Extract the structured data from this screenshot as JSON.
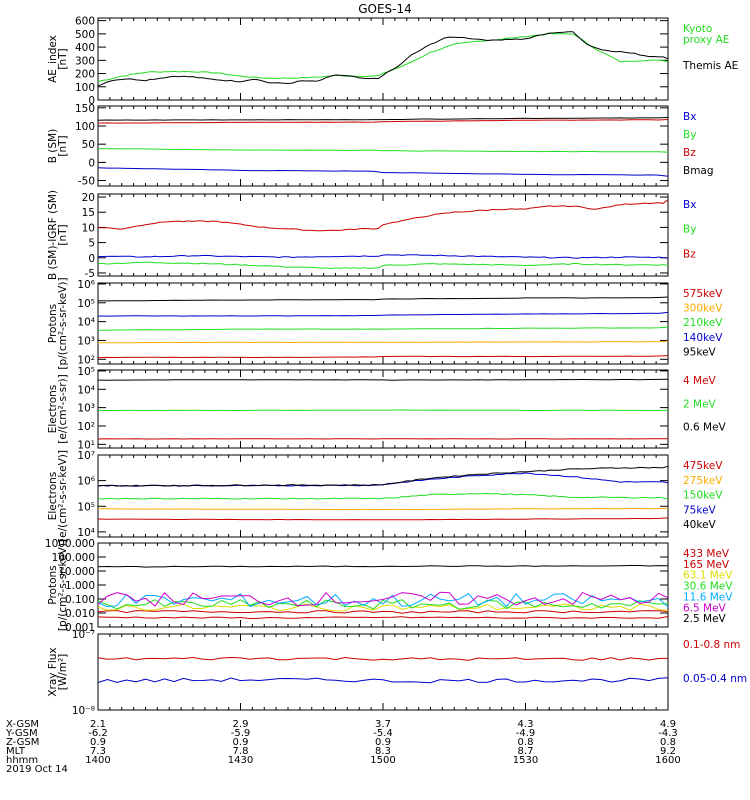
{
  "title": "GOES-14",
  "colors": {
    "black": "#000000",
    "red": "#cc0000",
    "green": "#22dd22",
    "blue": "#0000cc",
    "orange": "#ffaa00",
    "yellow": "#dddd00",
    "cyan": "#00aaff",
    "magenta": "#cc00cc",
    "kyoto": "#22dd22"
  },
  "chart_data": [
    {
      "type": "line",
      "ylabel": "AE_index\n[nT]",
      "yticks": [
        "600",
        "500",
        "400",
        "300",
        "200",
        "100",
        "0"
      ],
      "ylim": [
        0,
        620
      ],
      "scale": "linear",
      "series": [
        {
          "name": "Kyoto\nproxy AE",
          "color": "green",
          "x": [
            1400,
            1405,
            1410,
            1415,
            1420,
            1425,
            1430,
            1435,
            1440,
            1445,
            1450,
            1455,
            1500,
            1505,
            1510,
            1515,
            1520,
            1525,
            1530,
            1535,
            1540,
            1545,
            1550,
            1555,
            1600
          ],
          "y": [
            140,
            180,
            210,
            215,
            215,
            205,
            180,
            165,
            165,
            170,
            185,
            180,
            200,
            270,
            360,
            420,
            445,
            460,
            480,
            500,
            500,
            380,
            290,
            300,
            290
          ]
        },
        {
          "name": "Themis AE",
          "color": "black",
          "x": [
            1400,
            1403,
            1406,
            1410,
            1413,
            1416,
            1420,
            1423,
            1426,
            1430,
            1433,
            1436,
            1440,
            1443,
            1446,
            1450,
            1453,
            1456,
            1500,
            1503,
            1506,
            1510,
            1513,
            1516,
            1520,
            1523,
            1526,
            1530,
            1533,
            1536,
            1540,
            1543,
            1546,
            1550,
            1553,
            1556,
            1600
          ],
          "y": [
            110,
            150,
            160,
            150,
            165,
            180,
            175,
            160,
            150,
            140,
            160,
            130,
            125,
            145,
            140,
            190,
            180,
            160,
            190,
            250,
            340,
            420,
            470,
            475,
            460,
            450,
            460,
            460,
            490,
            510,
            515,
            420,
            380,
            365,
            350,
            330,
            310
          ]
        }
      ]
    },
    {
      "type": "line",
      "ylabel": "B (SM)\n[nT]",
      "yticks": [
        "150",
        "100",
        "50",
        "0",
        "-50"
      ],
      "ylim": [
        -65,
        155
      ],
      "scale": "linear",
      "series": [
        {
          "name": "Bx",
          "color": "blue",
          "x": [
            1400,
            1430,
            1500,
            1530,
            1600
          ],
          "y": [
            -15,
            -22,
            -28,
            -33,
            -38
          ]
        },
        {
          "name": "By",
          "color": "green",
          "x": [
            1400,
            1430,
            1500,
            1530,
            1600
          ],
          "y": [
            38,
            34,
            32,
            30,
            28
          ]
        },
        {
          "name": "Bz",
          "color": "red",
          "x": [
            1400,
            1430,
            1500,
            1530,
            1600
          ],
          "y": [
            108,
            110,
            112,
            116,
            118
          ]
        },
        {
          "name": "Bmag",
          "color": "black",
          "x": [
            1400,
            1430,
            1500,
            1530,
            1600
          ],
          "y": [
            116,
            117,
            118,
            121,
            124
          ]
        }
      ]
    },
    {
      "type": "line",
      "ylabel": "B (SM)-IGRF (SM)\n[nT]",
      "yticks": [
        "20",
        "15",
        "10",
        "5",
        "0",
        "-5"
      ],
      "ylim": [
        -6,
        21
      ],
      "scale": "linear",
      "series": [
        {
          "name": "Bx",
          "color": "blue",
          "x": [
            1400,
            1410,
            1420,
            1430,
            1440,
            1450,
            1500,
            1510,
            1520,
            1530,
            1540,
            1550,
            1600
          ],
          "y": [
            0.5,
            0.3,
            0.7,
            0.4,
            0.2,
            0.5,
            1.0,
            0.8,
            0.5,
            0.2,
            0.0,
            0.2,
            0.0
          ]
        },
        {
          "name": "By",
          "color": "green",
          "x": [
            1400,
            1410,
            1420,
            1430,
            1440,
            1450,
            1500,
            1510,
            1520,
            1530,
            1540,
            1550,
            1600
          ],
          "y": [
            -2.0,
            -1.5,
            -1.8,
            -2.3,
            -3.0,
            -3.5,
            -2.5,
            -2.0,
            -2.2,
            -2.5,
            -2.0,
            -2.3,
            -2.5
          ]
        },
        {
          "name": "Bz",
          "color": "red",
          "x": [
            1400,
            1405,
            1410,
            1415,
            1420,
            1425,
            1430,
            1435,
            1440,
            1445,
            1450,
            1455,
            1500,
            1505,
            1510,
            1515,
            1520,
            1525,
            1530,
            1535,
            1540,
            1545,
            1550,
            1555,
            1600
          ],
          "y": [
            10,
            9.5,
            11,
            12,
            12,
            12,
            11,
            10,
            9.5,
            9,
            9,
            9.5,
            11,
            12.5,
            14,
            15,
            15.5,
            16,
            16,
            17,
            17,
            16,
            17.5,
            18,
            19
          ]
        }
      ]
    },
    {
      "type": "line",
      "ylabel": "Protons\n[p/(cm²-s-sr-keV)]",
      "yticks": [
        "10⁶",
        "10⁵",
        "10⁴",
        "10³",
        "10²"
      ],
      "ylim": [
        1.75,
        6.05
      ],
      "scale": "log",
      "series": [
        {
          "name": "575keV",
          "color": "red",
          "x": [
            1400,
            1430,
            1500,
            1530,
            1600
          ],
          "y": [
            2.1,
            2.1,
            2.15,
            2.15,
            2.2
          ]
        },
        {
          "name": "300keV",
          "color": "orange",
          "x": [
            1400,
            1430,
            1500,
            1530,
            1600
          ],
          "y": [
            2.88,
            2.9,
            2.9,
            2.92,
            2.95
          ]
        },
        {
          "name": "210keV",
          "color": "green",
          "x": [
            1400,
            1430,
            1500,
            1530,
            1600
          ],
          "y": [
            3.55,
            3.6,
            3.6,
            3.65,
            3.7
          ]
        },
        {
          "name": "140keV",
          "color": "blue",
          "x": [
            1400,
            1430,
            1500,
            1530,
            1600
          ],
          "y": [
            4.3,
            4.3,
            4.35,
            4.4,
            4.5
          ]
        },
        {
          "name": "95keV",
          "color": "black",
          "x": [
            1400,
            1430,
            1500,
            1530,
            1600
          ],
          "y": [
            5.1,
            5.15,
            5.2,
            5.25,
            5.3
          ]
        }
      ]
    },
    {
      "type": "line",
      "ylabel": "Electrons\n[e/(cm²-s-sr)]",
      "yticks": [
        "10⁵",
        "10⁴",
        "10³",
        "10²",
        "10¹"
      ],
      "ylim": [
        0.8,
        5.05
      ],
      "scale": "log",
      "series": [
        {
          "name": "4 MeV",
          "color": "red",
          "x": [
            1400,
            1430,
            1500,
            1530,
            1600
          ],
          "y": [
            1.3,
            1.3,
            1.3,
            1.3,
            1.3
          ]
        },
        {
          "name": "2 MeV",
          "color": "green",
          "x": [
            1400,
            1430,
            1500,
            1530,
            1600
          ],
          "y": [
            2.85,
            2.85,
            2.87,
            2.85,
            2.85
          ]
        },
        {
          "name": "0.6 MeV",
          "color": "black",
          "x": [
            1400,
            1430,
            1500,
            1530,
            1600
          ],
          "y": [
            4.5,
            4.52,
            4.5,
            4.52,
            4.55
          ]
        }
      ]
    },
    {
      "type": "line",
      "ylabel": "Electrons\n[e/(cm²-s-sr-keV)]",
      "yticks": [
        "10⁷",
        "10⁶",
        "10⁵",
        "10⁴"
      ],
      "ylim": [
        3.8,
        7.0
      ],
      "scale": "log",
      "series": [
        {
          "name": "475keV",
          "color": "red",
          "x": [
            1400,
            1430,
            1500,
            1530,
            1600
          ],
          "y": [
            4.5,
            4.48,
            4.47,
            4.5,
            4.55
          ]
        },
        {
          "name": "275keV",
          "color": "orange",
          "x": [
            1400,
            1430,
            1500,
            1530,
            1600
          ],
          "y": [
            4.9,
            4.88,
            4.87,
            4.9,
            4.92
          ]
        },
        {
          "name": "150keV",
          "color": "green",
          "x": [
            1400,
            1430,
            1500,
            1510,
            1520,
            1530,
            1540,
            1600
          ],
          "y": [
            5.3,
            5.3,
            5.3,
            5.45,
            5.5,
            5.45,
            5.35,
            5.3
          ]
        },
        {
          "name": "75keV",
          "color": "blue",
          "x": [
            1400,
            1430,
            1500,
            1510,
            1520,
            1530,
            1540,
            1550,
            1600
          ],
          "y": [
            5.8,
            5.8,
            5.85,
            6.05,
            6.2,
            6.3,
            6.15,
            5.95,
            5.9
          ]
        },
        {
          "name": "40keV",
          "color": "black",
          "x": [
            1400,
            1430,
            1500,
            1510,
            1520,
            1530,
            1540,
            1550,
            1600
          ],
          "y": [
            5.8,
            5.82,
            5.85,
            6.1,
            6.25,
            6.35,
            6.45,
            6.5,
            6.55
          ]
        }
      ]
    },
    {
      "type": "line",
      "ylabel": "Protons\n[p/(cm²-s-sr-keV)]",
      "yticks": [
        "1000.000",
        "100.000",
        "10.000",
        "1.000",
        "0.100",
        "0.010",
        "0.001"
      ],
      "ylim": [
        -3.0,
        3.0
      ],
      "scale": "log",
      "series": [
        {
          "name": "433 MeV",
          "color": "red",
          "x": [
            1400,
            1430,
            1500,
            1530,
            1600
          ],
          "y": [
            -2.3,
            -2.35,
            -2.3,
            -2.35,
            -2.3
          ],
          "jitter": 0.05
        },
        {
          "name": "165 MeV",
          "color": "red",
          "x": [
            1400,
            1430,
            1500,
            1530,
            1600
          ],
          "y": [
            -1.9,
            -1.9,
            -1.95,
            -1.9,
            -1.9
          ],
          "jitter": 0.08
        },
        {
          "name": "63.1 MeV",
          "color": "yellow",
          "x": [
            1400,
            1430,
            1500,
            1530,
            1600
          ],
          "y": [
            -1.6,
            -1.6,
            -1.6,
            -1.6,
            -1.6
          ],
          "jitter": 0.25
        },
        {
          "name": "30.6 MeV",
          "color": "green",
          "x": [
            1400,
            1430,
            1500,
            1530,
            1600
          ],
          "y": [
            -1.4,
            -1.4,
            -1.4,
            -1.4,
            -1.4
          ],
          "jitter": 0.35
        },
        {
          "name": "11.6 MeV",
          "color": "cyan",
          "x": [
            1400,
            1430,
            1500,
            1530,
            1600
          ],
          "y": [
            -1.1,
            -1.1,
            -1.1,
            -1.1,
            -1.1
          ],
          "jitter": 0.5
        },
        {
          "name": "6.5 MeV",
          "color": "magenta",
          "x": [
            1400,
            1430,
            1500,
            1530,
            1600
          ],
          "y": [
            -1.0,
            -1.0,
            -1.0,
            -1.0,
            -1.0
          ],
          "jitter": 0.5
        },
        {
          "name": "2.5 MeV",
          "color": "black",
          "x": [
            1400,
            1430,
            1500,
            1530,
            1600
          ],
          "y": [
            1.3,
            1.32,
            1.35,
            1.35,
            1.4
          ],
          "jitter": 0.03
        }
      ]
    },
    {
      "type": "line",
      "ylabel": "Xray Flux\n[W/m²]",
      "yticks": [
        "10⁻⁷",
        "10⁻⁸"
      ],
      "ylim": [
        -8.0,
        -7.0
      ],
      "scale": "log",
      "series": [
        {
          "name": "0.1-0.8 nm",
          "color": "red",
          "x": [
            1400,
            1430,
            1500,
            1530,
            1600
          ],
          "y": [
            -7.33,
            -7.32,
            -7.33,
            -7.33,
            -7.32
          ],
          "jitter": 0.02
        },
        {
          "name": "0.05-0.4 nm",
          "color": "blue",
          "x": [
            1400,
            1430,
            1500,
            1530,
            1600
          ],
          "y": [
            -7.62,
            -7.6,
            -7.62,
            -7.61,
            -7.6
          ],
          "jitter": 0.025
        }
      ]
    }
  ],
  "x_axis": {
    "xlim": [
      1400,
      1600
    ],
    "row_labels": [
      "X-GSM",
      "Y-GSM",
      "Z-GSM",
      "MLT",
      "hhmm",
      "2019 Oct 14"
    ],
    "columns": [
      {
        "x": 1400,
        "values": [
          "2.1",
          "-6.2",
          "0.9",
          "7.3",
          "1400"
        ]
      },
      {
        "x": 1430,
        "values": [
          "2.9",
          "-5.9",
          "0.9",
          "7.8",
          "1430"
        ]
      },
      {
        "x": 1500,
        "values": [
          "3.7",
          "-5.4",
          "0.9",
          "8.3",
          "1500"
        ]
      },
      {
        "x": 1530,
        "values": [
          "4.3",
          "-4.9",
          "0.8",
          "8.7",
          "1530"
        ]
      },
      {
        "x": 1600,
        "values": [
          "4.9",
          "-4.3",
          "0.8",
          "9.2",
          "1600"
        ]
      }
    ]
  }
}
